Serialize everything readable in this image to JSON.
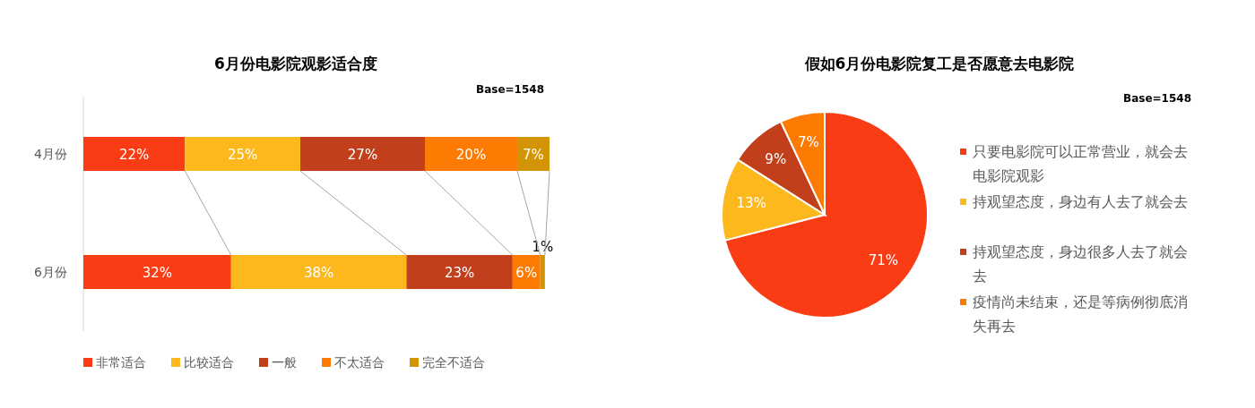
{
  "chart_data": [
    {
      "type": "bar",
      "orientation": "horizontal",
      "stacked": true,
      "title": "6月份电影院观影适合度",
      "annotations": [
        "Base=1548"
      ],
      "categories": [
        "4月份",
        "6月份"
      ],
      "series": [
        {
          "name": "非常适合",
          "color": "#fa3c14",
          "values": [
            22,
            32
          ],
          "value_labels": [
            "22%",
            "32%"
          ]
        },
        {
          "name": "比较适合",
          "color": "#fdb81e",
          "values": [
            25,
            38
          ],
          "value_labels": [
            "25%",
            "38%"
          ]
        },
        {
          "name": "一般",
          "color": "#c23f1c",
          "values": [
            27,
            23
          ],
          "value_labels": [
            "27%",
            "23%"
          ]
        },
        {
          "name": "不太适合",
          "color": "#fd7b03",
          "values": [
            20,
            6
          ],
          "value_labels": [
            "20%",
            "6%"
          ]
        },
        {
          "name": "完全不适合",
          "color": "#d39403",
          "values": [
            7,
            1
          ],
          "value_labels": [
            "7%",
            "1%"
          ]
        }
      ],
      "legend": "bottom"
    },
    {
      "type": "pie",
      "title": "假如6月份电影院复工是否愿意去电影院",
      "annotations": [
        "Base=1548"
      ],
      "categories": [
        "只要电影院可以正常营业，就会去电影院观影",
        "持观望态度，身边有人去了就会去",
        "持观望态度，身边很多人去了就会去",
        "疫情尚未结束，还是等病例彻底消失再去"
      ],
      "values": [
        71,
        13,
        9,
        7
      ],
      "value_labels": [
        "71%",
        "13%",
        "9%",
        "7%"
      ],
      "colors": [
        "#fa3c14",
        "#fdb81e",
        "#c23f1c",
        "#fd7b03"
      ],
      "legend": "right"
    }
  ]
}
